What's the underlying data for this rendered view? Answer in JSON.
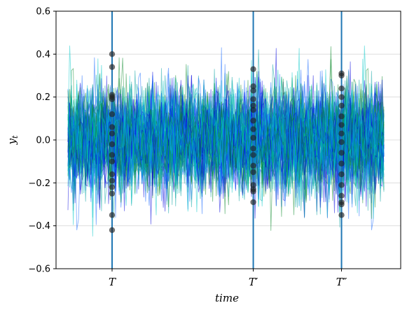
{
  "chart_data": {
    "type": "line",
    "title": "",
    "xlabel": "time",
    "ylabel_base": "y",
    "ylabel_sub": "t",
    "ylim": [
      -0.6,
      0.6
    ],
    "yticks": [
      -0.6,
      -0.4,
      -0.2,
      0.0,
      0.2,
      0.4,
      0.6
    ],
    "ytick_labels": [
      "−0.6",
      "−0.4",
      "−0.2",
      "0.0",
      "0.2",
      "0.4",
      "0.6"
    ],
    "grid": "horizontal",
    "n_series": 60,
    "n_steps": 180,
    "noise_sd": 0.12,
    "series_colors": [
      "#0000dd",
      "#00a0a0",
      "#0a8a2a",
      "#1166ff",
      "#00c8c8"
    ],
    "vline_color": "#1f77b4",
    "marker_color": "#222222",
    "vlines": [
      {
        "label": "T",
        "prime": "",
        "t": 25,
        "points": [
          0.4,
          0.34,
          0.21,
          0.2,
          0.19,
          0.12,
          0.06,
          0.03,
          -0.02,
          -0.07,
          -0.1,
          -0.16,
          -0.19,
          -0.22,
          -0.25,
          -0.35,
          -0.42
        ]
      },
      {
        "label": "T",
        "prime": "′",
        "t": 105,
        "points": [
          0.33,
          0.25,
          0.23,
          0.19,
          0.16,
          0.14,
          0.09,
          0.05,
          0.01,
          -0.04,
          -0.07,
          -0.12,
          -0.15,
          -0.21,
          -0.23,
          -0.24,
          -0.29
        ]
      },
      {
        "label": "T",
        "prime": "″",
        "t": 155,
        "points": [
          0.31,
          0.3,
          0.24,
          0.2,
          0.16,
          0.11,
          0.07,
          0.03,
          -0.01,
          -0.06,
          -0.11,
          -0.16,
          -0.21,
          -0.26,
          -0.29,
          -0.3,
          -0.35
        ]
      }
    ]
  }
}
